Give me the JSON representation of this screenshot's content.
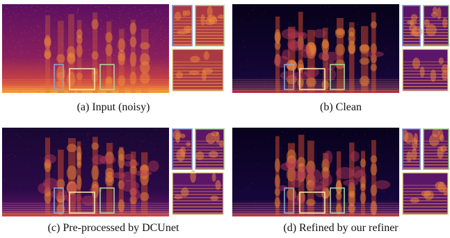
{
  "figure": {
    "panels": [
      {
        "id": "a",
        "caption": "(a) Input (noisy)",
        "variant": "noisy"
      },
      {
        "id": "b",
        "caption": "(b) Clean",
        "variant": "clean"
      },
      {
        "id": "c",
        "caption": "(c) Pre-processed by DCUnet",
        "variant": "dcunet"
      },
      {
        "id": "d",
        "caption": "(d) Refined by our refiner",
        "variant": "refined"
      }
    ],
    "highlight_colors": {
      "left_box": "#8fa3d6",
      "middle_box": "#f3e6a6",
      "right_box": "#a9d69a"
    },
    "colormap": "inferno"
  }
}
